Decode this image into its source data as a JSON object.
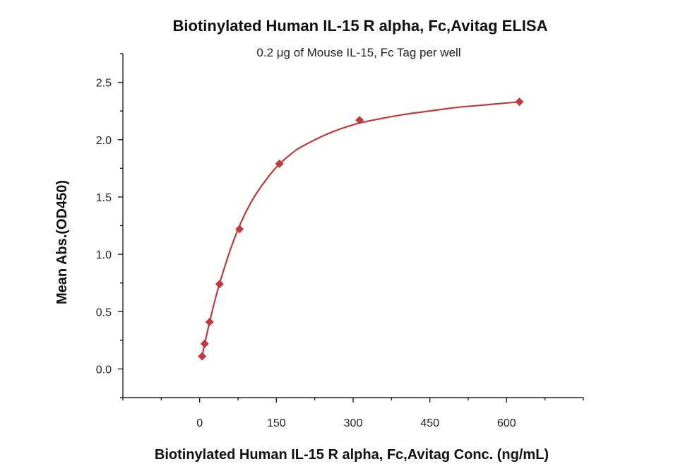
{
  "chart_data": {
    "type": "scatter",
    "title": "Biotinylated Human IL-15 R alpha, Fc,Avitag ELISA",
    "subtitle": "0.2 μg of Mouse IL-15, Fc Tag per well",
    "xlabel": "Biotinylated Human IL-15 R alpha, Fc,Avitag Conc. (ng/mL)",
    "ylabel": "Mean Abs.(OD450)",
    "xlim": [
      -150,
      750
    ],
    "ylim": [
      -0.25,
      2.75
    ],
    "x_ticks": [
      0,
      150,
      300,
      450,
      600
    ],
    "y_ticks": [
      0.0,
      0.5,
      1.0,
      1.5,
      2.0,
      2.5
    ],
    "x_tick_labels": [
      "0",
      "150",
      "300",
      "450",
      "600"
    ],
    "y_tick_labels": [
      "0.0",
      "0.5",
      "1.0",
      "1.5",
      "2.0",
      "2.5"
    ],
    "grid": false,
    "legend": "none",
    "color": "#c0393b",
    "marker": "diamond",
    "fit": "4PL",
    "series": [
      {
        "x": [
          4.9,
          9.8,
          19.5,
          39,
          78,
          156,
          312.5,
          625
        ],
        "y": [
          0.11,
          0.22,
          0.41,
          0.74,
          1.22,
          1.79,
          2.17,
          2.33
        ]
      }
    ],
    "fit_curve": {
      "x": [
        4.9,
        10,
        20,
        30,
        40,
        60,
        80,
        100,
        120,
        150,
        180,
        200,
        250,
        300,
        350,
        400,
        450,
        500,
        550,
        600,
        625
      ],
      "y": [
        0.11,
        0.22,
        0.42,
        0.6,
        0.76,
        1.04,
        1.27,
        1.45,
        1.59,
        1.76,
        1.88,
        1.94,
        2.05,
        2.13,
        2.18,
        2.22,
        2.25,
        2.28,
        2.3,
        2.32,
        2.33
      ]
    }
  }
}
